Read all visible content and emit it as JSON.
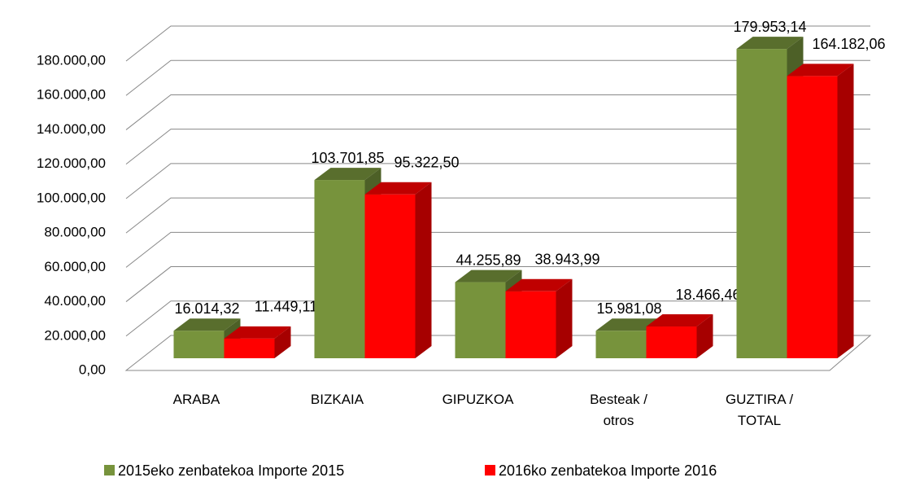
{
  "chart_data": {
    "type": "bar3d",
    "categories": [
      "ARABA",
      "BIZKAIA",
      "GIPUZKOA",
      "Besteak /\notros",
      "GUZTIRA  /\nTOTAL"
    ],
    "series": [
      {
        "name": "2015eko zenbatekoa Importe 2015",
        "color": "#77933c",
        "values": [
          16014.32,
          103701.85,
          44255.89,
          15981.08,
          179953.14
        ],
        "value_labels": [
          "16.014,32",
          "103.701,85",
          "44.255,89",
          "15.981,08",
          "179.953,14"
        ]
      },
      {
        "name": "2016ko zenbatekoa Importe 2016",
        "color": "#ff0000",
        "values": [
          11449.11,
          95322.5,
          38943.99,
          18466.46,
          164182.06
        ],
        "value_labels": [
          "11.449,11",
          "95.322,50",
          "38.943,99",
          "18.466,46",
          "164.182,06"
        ]
      }
    ],
    "ylim": [
      0,
      180000
    ],
    "yticks": [
      {
        "value": 0,
        "label": "0,00"
      },
      {
        "value": 20000,
        "label": "20.000,00"
      },
      {
        "value": 40000,
        "label": "40.000,00"
      },
      {
        "value": 60000,
        "label": "60.000,00"
      },
      {
        "value": 80000,
        "label": "80.000,00"
      },
      {
        "value": 100000,
        "label": "100.000,00"
      },
      {
        "value": 120000,
        "label": "120.000,00"
      },
      {
        "value": 140000,
        "label": "140.000,00"
      },
      {
        "value": 160000,
        "label": "160.000,00"
      },
      {
        "value": 180000,
        "label": "180.000,00"
      }
    ],
    "grid": true,
    "legend": "bottom"
  }
}
